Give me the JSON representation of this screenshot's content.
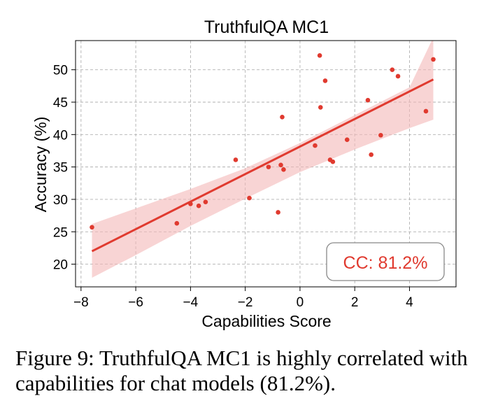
{
  "chart_data": {
    "type": "scatter",
    "title": "TruthfulQA MC1",
    "xlabel": "Capabilities Score",
    "ylabel": "Accuracy (%)",
    "xlim": [
      -8.2,
      5.7
    ],
    "ylim": [
      16.5,
      54.5
    ],
    "x_ticks": [
      -8,
      -6,
      -4,
      -2,
      0,
      2,
      4
    ],
    "x_tick_labels": [
      "−8",
      "−6",
      "−4",
      "−2",
      "0",
      "2",
      "4"
    ],
    "y_ticks": [
      20,
      25,
      30,
      35,
      40,
      45,
      50
    ],
    "y_tick_labels": [
      "20",
      "25",
      "30",
      "35",
      "40",
      "45",
      "50"
    ],
    "grid": true,
    "colors": {
      "points": "#e03a2f",
      "fit_line": "#e03a2f",
      "confidence_band": "#f4b7b7",
      "annotation_text": "#e03a2f"
    },
    "points": [
      {
        "x": -7.6,
        "y": 25.7
      },
      {
        "x": -4.5,
        "y": 26.3
      },
      {
        "x": -4.0,
        "y": 29.3
      },
      {
        "x": -3.7,
        "y": 29.0
      },
      {
        "x": -3.45,
        "y": 29.6
      },
      {
        "x": -2.35,
        "y": 36.1
      },
      {
        "x": -1.85,
        "y": 30.2
      },
      {
        "x": -1.15,
        "y": 35.0
      },
      {
        "x": -0.8,
        "y": 28.0
      },
      {
        "x": -0.7,
        "y": 35.3
      },
      {
        "x": -0.65,
        "y": 42.7
      },
      {
        "x": -0.6,
        "y": 34.6
      },
      {
        "x": 0.55,
        "y": 38.3
      },
      {
        "x": 0.72,
        "y": 52.2
      },
      {
        "x": 0.75,
        "y": 44.2
      },
      {
        "x": 0.92,
        "y": 48.3
      },
      {
        "x": 1.1,
        "y": 36.1
      },
      {
        "x": 1.2,
        "y": 35.8
      },
      {
        "x": 1.72,
        "y": 39.2
      },
      {
        "x": 2.48,
        "y": 45.3
      },
      {
        "x": 2.6,
        "y": 36.9
      },
      {
        "x": 2.95,
        "y": 39.9
      },
      {
        "x": 3.37,
        "y": 50.0
      },
      {
        "x": 3.58,
        "y": 49.0
      },
      {
        "x": 4.6,
        "y": 43.6
      },
      {
        "x": 4.87,
        "y": 51.6
      }
    ],
    "fit_line": {
      "x": [
        -7.6,
        4.87
      ],
      "y": [
        22.0,
        48.5
      ]
    },
    "confidence_band": {
      "x": [
        -7.6,
        -6,
        -4,
        -2,
        0,
        2,
        4,
        4.87
      ],
      "lower": [
        17.9,
        21.4,
        25.9,
        30.1,
        34.2,
        37.7,
        41.0,
        42.3
      ],
      "upper": [
        26.2,
        28.6,
        31.6,
        34.8,
        38.7,
        43.0,
        47.3,
        55.0
      ]
    },
    "annotation": {
      "text": "CC: 81.2%",
      "placement": "bottom-right"
    }
  },
  "caption": "Figure 9: TruthfulQA MC1 is highly correlated with capabilities for chat models (81.2%)."
}
